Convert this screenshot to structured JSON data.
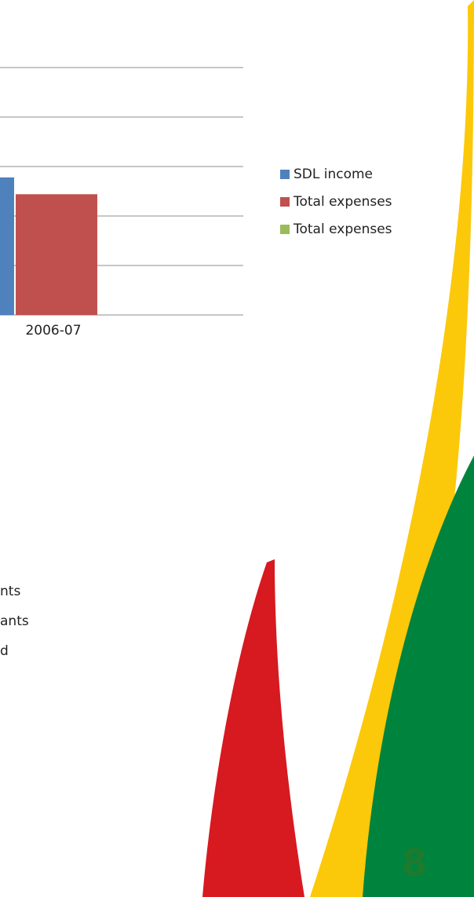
{
  "chart_data": {
    "type": "bar",
    "categories": [
      "2006-07"
    ],
    "series": [
      {
        "name": "SDL income",
        "color": "#4f81bd",
        "values": [
          2.78
        ]
      },
      {
        "name": "Total expenses",
        "color": "#c0504d",
        "values": [
          2.44
        ]
      },
      {
        "name": "Total expenses",
        "color": "#9bbb59",
        "values": [
          0
        ]
      }
    ],
    "ylim": [
      0,
      5
    ],
    "yticks": [
      0,
      1,
      2,
      3,
      4,
      5
    ],
    "grid": true
  },
  "fragments": [
    "nts",
    "ants",
    "d"
  ],
  "page_number": "8"
}
